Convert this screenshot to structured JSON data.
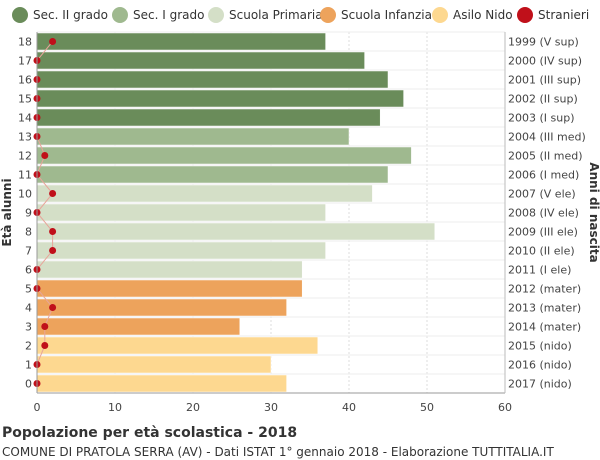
{
  "chart_data": {
    "type": "bar",
    "orientation": "horizontal",
    "title": "Popolazione per età scolastica - 2018",
    "subtitle": "COMUNE DI PRATOLA SERRA (AV) - Dati ISTAT 1° gennaio 2018 - Elaborazione TUTTITALIA.IT",
    "ylabel": "Età alunni",
    "ylabel_right": "Anni di nascita",
    "xlim": [
      0,
      60
    ],
    "xticks": [
      "0",
      "10",
      "20",
      "30",
      "40",
      "50",
      "60"
    ],
    "grid": true,
    "legend_position": "top",
    "legend": [
      {
        "name": "Sec. II grado",
        "color": "#6a8c5a"
      },
      {
        "name": "Sec. I grado",
        "color": "#9fb98f"
      },
      {
        "name": "Scuola Primaria",
        "color": "#d4dfc7"
      },
      {
        "name": "Scuola Infanzia",
        "color": "#eda35c"
      },
      {
        "name": "Asilo Nido",
        "color": "#fdd890"
      },
      {
        "name": "Stranieri",
        "color": "#c0101a"
      }
    ],
    "rows": [
      {
        "age": "18",
        "birth": "1999 (V sup)",
        "value": 37,
        "stranieri": 2,
        "group": 0
      },
      {
        "age": "17",
        "birth": "2000 (IV sup)",
        "value": 42,
        "stranieri": 0,
        "group": 0
      },
      {
        "age": "16",
        "birth": "2001 (III sup)",
        "value": 45,
        "stranieri": 0,
        "group": 0
      },
      {
        "age": "15",
        "birth": "2002 (II sup)",
        "value": 47,
        "stranieri": 0,
        "group": 0
      },
      {
        "age": "14",
        "birth": "2003 (I sup)",
        "value": 44,
        "stranieri": 0,
        "group": 0
      },
      {
        "age": "13",
        "birth": "2004 (III med)",
        "value": 40,
        "stranieri": 0,
        "group": 1
      },
      {
        "age": "12",
        "birth": "2005 (II med)",
        "value": 48,
        "stranieri": 1,
        "group": 1
      },
      {
        "age": "11",
        "birth": "2006 (I med)",
        "value": 45,
        "stranieri": 0,
        "group": 1
      },
      {
        "age": "10",
        "birth": "2007 (V ele)",
        "value": 43,
        "stranieri": 2,
        "group": 2
      },
      {
        "age": "9",
        "birth": "2008 (IV ele)",
        "value": 37,
        "stranieri": 0,
        "group": 2
      },
      {
        "age": "8",
        "birth": "2009 (III ele)",
        "value": 51,
        "stranieri": 2,
        "group": 2
      },
      {
        "age": "7",
        "birth": "2010 (II ele)",
        "value": 37,
        "stranieri": 2,
        "group": 2
      },
      {
        "age": "6",
        "birth": "2011 (I ele)",
        "value": 34,
        "stranieri": 0,
        "group": 2
      },
      {
        "age": "5",
        "birth": "2012 (mater)",
        "value": 34,
        "stranieri": 0,
        "group": 3
      },
      {
        "age": "4",
        "birth": "2013 (mater)",
        "value": 32,
        "stranieri": 2,
        "group": 3
      },
      {
        "age": "3",
        "birth": "2014 (mater)",
        "value": 26,
        "stranieri": 1,
        "group": 3
      },
      {
        "age": "2",
        "birth": "2015 (nido)",
        "value": 36,
        "stranieri": 1,
        "group": 4
      },
      {
        "age": "1",
        "birth": "2016 (nido)",
        "value": 30,
        "stranieri": 0,
        "group": 4
      },
      {
        "age": "0",
        "birth": "2017 (nido)",
        "value": 32,
        "stranieri": 0,
        "group": 4
      }
    ]
  }
}
